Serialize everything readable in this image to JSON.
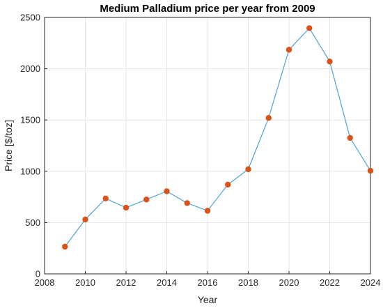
{
  "chart_data": {
    "type": "line",
    "title": "Medium Palladium price per year from 2009",
    "xlabel": "Year",
    "ylabel": "Price [$/toz]",
    "xlim": [
      2008,
      2024
    ],
    "ylim": [
      0,
      2500
    ],
    "xticks": [
      "2008",
      "2010",
      "2012",
      "2014",
      "2016",
      "2018",
      "2020",
      "2022",
      "2024"
    ],
    "yticks": [
      "0",
      "500",
      "1000",
      "1500",
      "2000",
      "2500"
    ],
    "grid": true,
    "x": [
      2009,
      2010,
      2011,
      2012,
      2013,
      2014,
      2015,
      2016,
      2017,
      2018,
      2019,
      2020,
      2021,
      2022,
      2023,
      2024
    ],
    "series": [
      {
        "values": [
          265,
          530,
          735,
          645,
          725,
          805,
          690,
          615,
          870,
          1020,
          1520,
          2185,
          2395,
          2070,
          1325,
          1005
        ],
        "line_color": "#4da3d4",
        "marker_color": "#d95319"
      }
    ]
  }
}
